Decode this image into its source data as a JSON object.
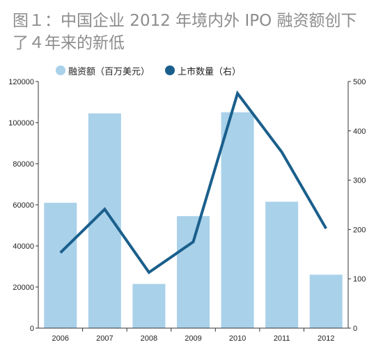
{
  "title_line1": "图１：中国企业 2012 年境内外 IPO 融资额创下",
  "title_line2": "了４年来的新低",
  "chart_data": {
    "type": "bar",
    "categories": [
      "2006",
      "2007",
      "2008",
      "2009",
      "2010",
      "2011",
      "2012"
    ],
    "series": [
      {
        "name": "融资额（百万美元）",
        "type": "bar",
        "axis": "left",
        "color": "#a9d1ea",
        "values": [
          61000,
          104500,
          21500,
          54500,
          105000,
          61500,
          26000
        ]
      },
      {
        "name": "上市数量（右）",
        "type": "line",
        "axis": "right",
        "color": "#1a5f8c",
        "values": [
          153,
          241,
          113,
          175,
          476,
          357,
          202
        ]
      }
    ],
    "ylim_left": [
      0,
      120000
    ],
    "yticks_left": [
      "0",
      "20000",
      "40000",
      "60000",
      "80000",
      "100000",
      "120000"
    ],
    "ylim_right": [
      0,
      500
    ],
    "yticks_right": [
      "0",
      "100",
      "200",
      "300",
      "400",
      "500"
    ],
    "grid": false,
    "legend": "top"
  }
}
